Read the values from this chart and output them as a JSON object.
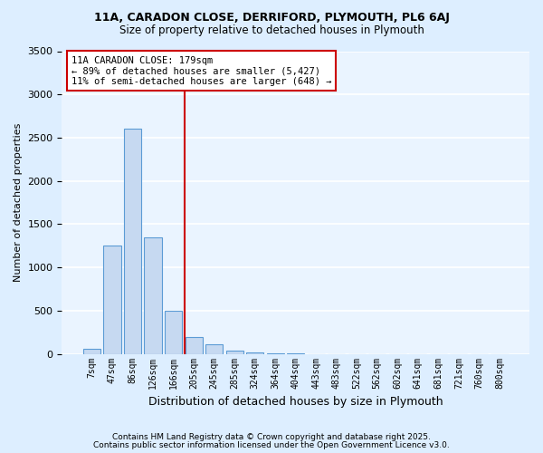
{
  "title1": "11A, CARADON CLOSE, DERRIFORD, PLYMOUTH, PL6 6AJ",
  "title2": "Size of property relative to detached houses in Plymouth",
  "xlabel": "Distribution of detached houses by size in Plymouth",
  "ylabel": "Number of detached properties",
  "bin_labels": [
    "7sqm",
    "47sqm",
    "86sqm",
    "126sqm",
    "166sqm",
    "205sqm",
    "245sqm",
    "285sqm",
    "324sqm",
    "364sqm",
    "404sqm",
    "443sqm",
    "483sqm",
    "522sqm",
    "562sqm",
    "602sqm",
    "641sqm",
    "681sqm",
    "721sqm",
    "760sqm",
    "800sqm"
  ],
  "bar_values": [
    55,
    1250,
    2600,
    1350,
    500,
    200,
    110,
    40,
    15,
    8,
    3,
    1,
    0,
    0,
    0,
    0,
    0,
    0,
    0,
    0,
    0
  ],
  "bar_color": "#c6d9f1",
  "bar_edge_color": "#5b9bd5",
  "vline_x": 4.55,
  "vline_color": "#cc0000",
  "annotation_title": "11A CARADON CLOSE: 179sqm",
  "annotation_line1": "← 89% of detached houses are smaller (5,427)",
  "annotation_line2": "11% of semi-detached houses are larger (648) →",
  "annotation_box_color": "#cc0000",
  "ylim": [
    0,
    3500
  ],
  "yticks": [
    0,
    500,
    1000,
    1500,
    2000,
    2500,
    3000,
    3500
  ],
  "footer1": "Contains HM Land Registry data © Crown copyright and database right 2025.",
  "footer2": "Contains public sector information licensed under the Open Government Licence v3.0.",
  "bg_color": "#ddeeff",
  "plot_bg_color": "#eaf4ff"
}
